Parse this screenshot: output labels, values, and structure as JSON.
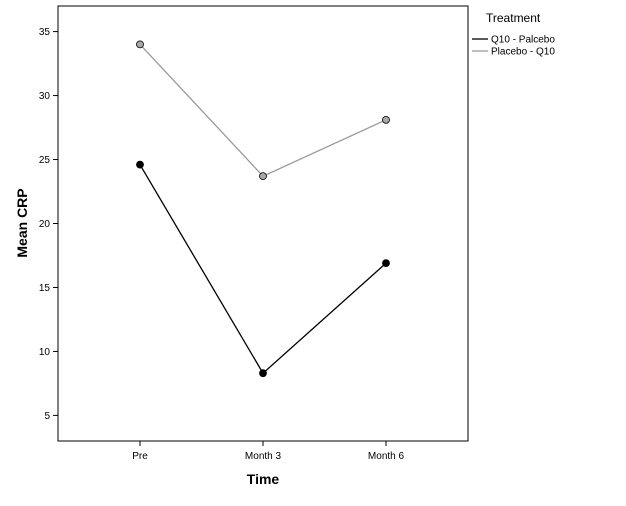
{
  "chart_data": {
    "type": "line",
    "xlabel": "Time",
    "ylabel": "Mean CRP",
    "categories": [
      "Pre",
      "Month 3",
      "Month 6"
    ],
    "ylim": [
      3,
      37
    ],
    "yticks": [
      5,
      10,
      15,
      20,
      25,
      30,
      35
    ],
    "grid": false,
    "legend": {
      "title": "Treatment",
      "placement": "right"
    },
    "series": [
      {
        "name": "Q10 - Palcebo",
        "values": [
          24.6,
          8.3,
          16.9
        ],
        "color": "#000000",
        "marker_color": "#000000"
      },
      {
        "name": "Placebo - Q10",
        "values": [
          34.0,
          23.7,
          28.1
        ],
        "color": "#9a9a9a",
        "marker_color": "#a8a8a8"
      }
    ]
  }
}
